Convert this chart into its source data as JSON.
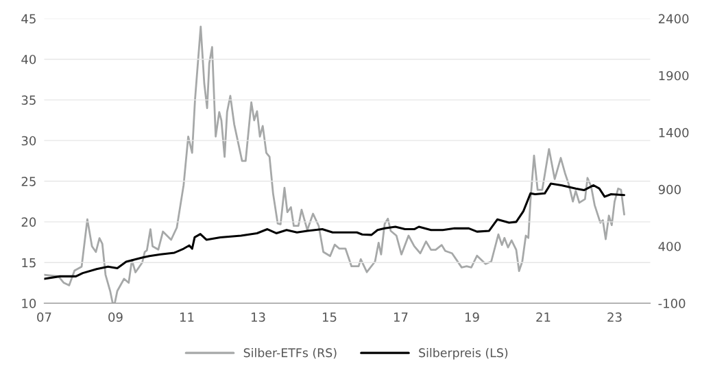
{
  "chart_data": {
    "type": "line",
    "xlim": [
      2007,
      2024
    ],
    "xticks": [
      {
        "value": 2007,
        "label": "07"
      },
      {
        "value": 2009,
        "label": "09"
      },
      {
        "value": 2011,
        "label": "11"
      },
      {
        "value": 2013,
        "label": "13"
      },
      {
        "value": 2015,
        "label": "15"
      },
      {
        "value": 2017,
        "label": "17"
      },
      {
        "value": 2019,
        "label": "19"
      },
      {
        "value": 2021,
        "label": "21"
      },
      {
        "value": 2023,
        "label": "23"
      }
    ],
    "ylim": [
      10,
      45
    ],
    "yticks": [
      10,
      15,
      20,
      25,
      30,
      35,
      40,
      45
    ],
    "y2lim": [
      -100,
      2400
    ],
    "y2ticks": [
      -100,
      400,
      900,
      1400,
      1900,
      2400
    ],
    "grid": "y",
    "legend": "bottom",
    "line_style": "solid",
    "series": [
      {
        "name": "Silber-ETFs (RS)",
        "color": "#a6a8a8",
        "axis": "y2",
        "x": [
          2007.0,
          2007.4,
          2007.55,
          2007.7,
          2007.85,
          2008.05,
          2008.21,
          2008.34,
          2008.45,
          2008.55,
          2008.63,
          2008.72,
          2008.85,
          2008.92,
          2008.98,
          2009.05,
          2009.24,
          2009.37,
          2009.46,
          2009.56,
          2009.75,
          2009.82,
          2009.88,
          2009.98,
          2010.04,
          2010.2,
          2010.33,
          2010.56,
          2010.72,
          2010.91,
          2011.04,
          2011.15,
          2011.23,
          2011.39,
          2011.49,
          2011.57,
          2011.63,
          2011.71,
          2011.81,
          2011.91,
          2011.97,
          2012.06,
          2012.13,
          2012.22,
          2012.33,
          2012.55,
          2012.65,
          2012.81,
          2012.89,
          2012.97,
          2013.05,
          2013.13,
          2013.23,
          2013.32,
          2013.42,
          2013.55,
          2013.63,
          2013.74,
          2013.82,
          2013.92,
          2014.0,
          2014.13,
          2014.22,
          2014.38,
          2014.54,
          2014.7,
          2014.83,
          2015.02,
          2015.15,
          2015.28,
          2015.45,
          2015.62,
          2015.82,
          2015.88,
          2016.05,
          2016.28,
          2016.38,
          2016.45,
          2016.55,
          2016.64,
          2016.72,
          2016.88,
          2017.02,
          2017.22,
          2017.38,
          2017.55,
          2017.71,
          2017.85,
          2017.98,
          2018.15,
          2018.25,
          2018.44,
          2018.71,
          2018.85,
          2018.98,
          2019.14,
          2019.38,
          2019.54,
          2019.74,
          2019.84,
          2019.91,
          2020.01,
          2020.11,
          2020.24,
          2020.32,
          2020.41,
          2020.51,
          2020.58,
          2020.64,
          2020.74,
          2020.84,
          2020.97,
          2021.16,
          2021.32,
          2021.49,
          2021.61,
          2021.71,
          2021.83,
          2021.91,
          2022.01,
          2022.17,
          2022.24,
          2022.34,
          2022.44,
          2022.6,
          2022.67,
          2022.75,
          2022.84,
          2022.92,
          2023.0,
          2023.1,
          2023.18,
          2023.27
        ],
        "values": [
          150,
          136,
          79,
          57,
          186,
          221,
          636,
          400,
          350,
          471,
          421,
          150,
          7,
          -100,
          -100,
          7,
          114,
          79,
          279,
          171,
          257,
          350,
          364,
          550,
          400,
          371,
          529,
          457,
          564,
          936,
          1364,
          1221,
          1686,
          2329,
          1829,
          1614,
          2007,
          2150,
          1364,
          1579,
          1507,
          1186,
          1579,
          1721,
          1471,
          1150,
          1150,
          1664,
          1507,
          1586,
          1364,
          1457,
          1221,
          1186,
          864,
          600,
          593,
          914,
          700,
          743,
          579,
          579,
          721,
          543,
          686,
          579,
          350,
          314,
          414,
          379,
          380,
          224,
          224,
          286,
          173,
          266,
          431,
          328,
          597,
          642,
          535,
          493,
          328,
          493,
          400,
          338,
          442,
          369,
          369,
          411,
          359,
          338,
          214,
          224,
          214,
          317,
          245,
          266,
          504,
          411,
          473,
          390,
          452,
          369,
          183,
          266,
          493,
          473,
          803,
          1196,
          896,
          896,
          1254,
          990,
          1176,
          1041,
          948,
          793,
          886,
          783,
          814,
          1000,
          928,
          762,
          607,
          628,
          462,
          669,
          586,
          793,
          907,
          896,
          679
        ]
      },
      {
        "name": "Silberpreis (LS)",
        "color": "#000000",
        "x": [
          2007.0,
          2007.44,
          2007.89,
          2008.08,
          2008.47,
          2008.79,
          2009.05,
          2009.3,
          2009.75,
          2009.95,
          2010.27,
          2010.65,
          2010.91,
          2011.07,
          2011.15,
          2011.22,
          2011.38,
          2011.55,
          2011.94,
          2012.52,
          2012.97,
          2013.26,
          2013.51,
          2013.8,
          2014.09,
          2014.38,
          2014.8,
          2015.09,
          2015.39,
          2015.77,
          2015.92,
          2016.18,
          2016.35,
          2016.55,
          2016.85,
          2017.12,
          2017.38,
          2017.51,
          2017.85,
          2018.18,
          2018.51,
          2018.91,
          2019.14,
          2019.48,
          2019.71,
          2020.04,
          2020.24,
          2020.44,
          2020.64,
          2020.77,
          2021.04,
          2021.21,
          2021.51,
          2021.91,
          2022.14,
          2022.41,
          2022.57,
          2022.72,
          2022.9,
          2023.27
        ],
        "values": [
          13.0,
          13.3,
          13.3,
          13.7,
          14.2,
          14.5,
          14.3,
          15.1,
          15.6,
          15.8,
          16.0,
          16.2,
          16.7,
          17.1,
          16.7,
          18.1,
          18.5,
          17.8,
          18.1,
          18.3,
          18.6,
          19.1,
          18.6,
          19.0,
          18.7,
          18.9,
          19.1,
          18.7,
          18.7,
          18.7,
          18.45,
          18.4,
          19.0,
          19.2,
          19.4,
          19.1,
          19.1,
          19.4,
          19.0,
          19.0,
          19.2,
          19.2,
          18.8,
          18.9,
          20.3,
          19.9,
          20.0,
          21.3,
          23.5,
          23.4,
          23.5,
          24.7,
          24.5,
          24.1,
          23.9,
          24.5,
          24.1,
          23.1,
          23.4,
          23.3
        ]
      }
    ]
  }
}
